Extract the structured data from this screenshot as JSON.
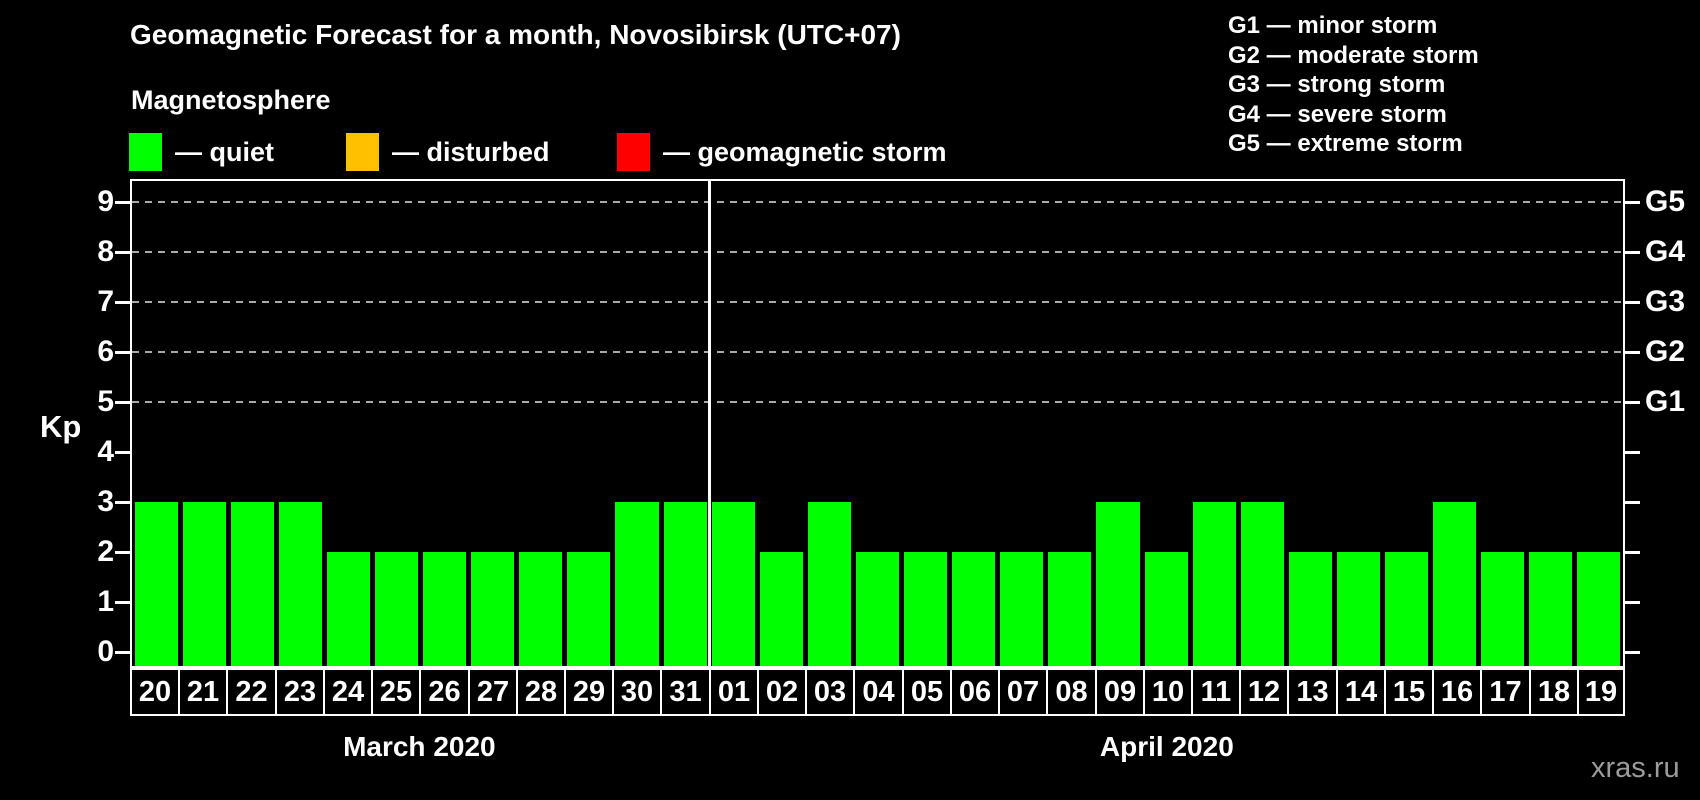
{
  "title": "Geomagnetic Forecast for a month, Novosibirsk (UTC+07)",
  "legend": {
    "heading": "Magnetosphere",
    "items": [
      {
        "name": "quiet",
        "label": "— quiet",
        "color": "#00FF00"
      },
      {
        "name": "disturbed",
        "label": "— disturbed",
        "color": "#FFC000"
      },
      {
        "name": "geomagnetic-storm",
        "label": "— geomagnetic storm",
        "color": "#FF0000"
      }
    ]
  },
  "storm_scale_legend": [
    "G1 — minor storm",
    "G2 — moderate storm",
    "G3 — strong storm",
    "G4 — severe storm",
    "G5 — extreme storm"
  ],
  "watermark": "xras.ru",
  "chart_data": {
    "type": "bar",
    "title": "Geomagnetic Forecast for a month, Novosibirsk (UTC+07)",
    "ylabel": "Kp",
    "ylim": [
      0,
      9
    ],
    "yticks": [
      0,
      1,
      2,
      3,
      4,
      5,
      6,
      7,
      8,
      9
    ],
    "gridlines_at_kp": [
      5,
      6,
      7,
      8,
      9
    ],
    "grid_style": "dashed horizontal lines at storm levels G1–G5 only",
    "right_axis": [
      {
        "label": "G5",
        "kp": 9
      },
      {
        "label": "G4",
        "kp": 8
      },
      {
        "label": "G3",
        "kp": 7
      },
      {
        "label": "G2",
        "kp": 6
      },
      {
        "label": "G1",
        "kp": 5
      }
    ],
    "categories": [
      "20",
      "21",
      "22",
      "23",
      "24",
      "25",
      "26",
      "27",
      "28",
      "29",
      "30",
      "31",
      "01",
      "02",
      "03",
      "04",
      "05",
      "06",
      "07",
      "08",
      "09",
      "10",
      "11",
      "12",
      "13",
      "14",
      "15",
      "16",
      "17",
      "18",
      "19"
    ],
    "values": [
      3,
      3,
      3,
      3,
      2,
      2,
      2,
      2,
      2,
      2,
      3,
      3,
      3,
      2,
      3,
      2,
      2,
      2,
      2,
      2,
      3,
      2,
      3,
      3,
      2,
      2,
      2,
      3,
      2,
      2,
      2
    ],
    "status_all_bars": "quiet",
    "bar_color": "#00FF00",
    "months": [
      {
        "label": "March 2020",
        "start_index": 0,
        "days": 12
      },
      {
        "label": "April 2020",
        "start_index": 12,
        "days": 19
      }
    ],
    "axis_color": "#FFFFFF",
    "grid_color": "#AAAAAA",
    "background": "#000000",
    "legend_position": "top"
  }
}
